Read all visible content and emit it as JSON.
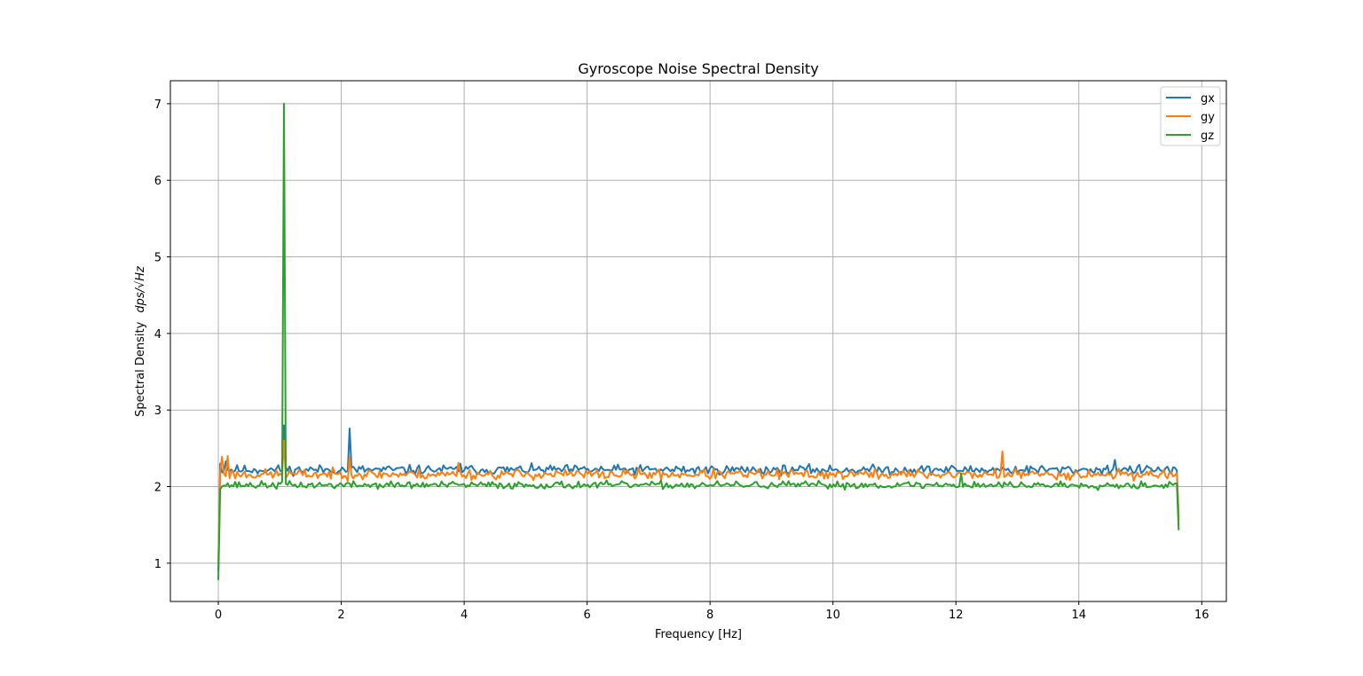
{
  "chart_data": {
    "type": "line",
    "title": "Gyroscope Noise Spectral Density",
    "xlabel": "Frequency [Hz]",
    "ylabel_prefix": "Spectral Density",
    "ylabel_unit": "dps/√Hz",
    "xlim": [
      -0.78,
      16.4
    ],
    "ylim": [
      0.5,
      7.3
    ],
    "xticks": [
      0,
      2,
      4,
      6,
      8,
      10,
      12,
      14,
      16
    ],
    "yticks": [
      1,
      2,
      3,
      4,
      5,
      6,
      7
    ],
    "xtick_labels": [
      "0",
      "2",
      "4",
      "6",
      "8",
      "10",
      "12",
      "14",
      "16"
    ],
    "ytick_labels": [
      "1",
      "2",
      "3",
      "4",
      "5",
      "6",
      "7"
    ],
    "grid": true,
    "legend": "top-right",
    "x_start": 0,
    "x_end": 15.625,
    "n_points": 513,
    "series": [
      {
        "name": "gx",
        "color": "#1f77b4",
        "start": 0.9,
        "end": 1.6,
        "baseline": 2.22,
        "noise": 0.05,
        "seed": 11,
        "peaks": [
          [
            0.04,
            2.3
          ],
          [
            0.12,
            2.33
          ],
          [
            1.07,
            2.8
          ],
          [
            2.15,
            2.76
          ],
          [
            3.95,
            2.3
          ],
          [
            14.6,
            2.35
          ]
        ]
      },
      {
        "name": "gy",
        "color": "#ff7f0e",
        "start": 1.0,
        "end": 1.55,
        "baseline": 2.16,
        "noise": 0.055,
        "seed": 23,
        "peaks": [
          [
            0.06,
            2.39
          ],
          [
            0.15,
            2.4
          ],
          [
            1.07,
            2.6
          ],
          [
            2.15,
            2.39
          ],
          [
            3.9,
            2.31
          ],
          [
            12.75,
            2.46
          ]
        ]
      },
      {
        "name": "gz",
        "color": "#2ca02c",
        "start": 0.78,
        "end": 1.43,
        "baseline": 2.02,
        "noise": 0.04,
        "seed": 37,
        "peaks": [
          [
            1.07,
            7.0
          ],
          [
            12.1,
            2.17
          ]
        ]
      }
    ]
  }
}
